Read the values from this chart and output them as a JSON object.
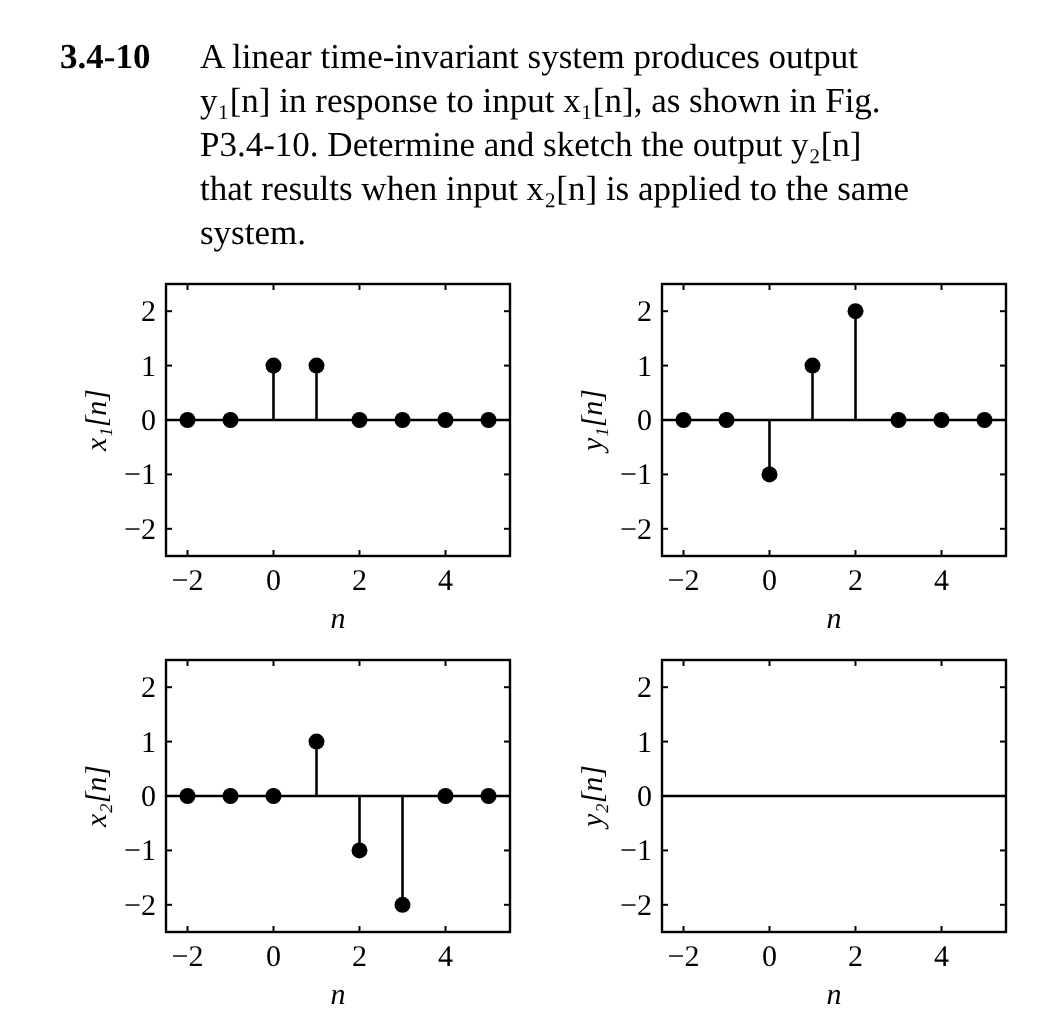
{
  "chart_data": [
    {
      "type": "other",
      "title": "3.4-10",
      "annotations": [
        "A linear time-invariant system produces output y₁[n] in response to input x₁[n], as shown in Fig. P3.4-10. Determine and sketch the output y₂[n] that results when input x₂[n] is applied to the same system."
      ]
    },
    {
      "type": "lollipop",
      "x": [
        -2,
        -1,
        0,
        1,
        2,
        3,
        4,
        5
      ],
      "values": [
        0,
        0,
        1,
        1,
        0,
        0,
        0,
        0
      ],
      "color": "#000000",
      "marker": "circle",
      "xlabel": "n",
      "ylabel": "x₁[n]",
      "xlim": [
        -2.5,
        5.5
      ],
      "ylim": [
        -2.5,
        2.5
      ],
      "xticks": [
        -2,
        0,
        2,
        4
      ],
      "yticks": [
        -2,
        -1,
        0,
        1,
        2
      ]
    },
    {
      "type": "lollipop",
      "x": [
        -2,
        -1,
        0,
        1,
        2,
        3,
        4,
        5
      ],
      "values": [
        0,
        0,
        -1,
        1,
        2,
        0,
        0,
        0
      ],
      "color": "#000000",
      "marker": "circle",
      "xlabel": "n",
      "ylabel": "y₁[n]",
      "xlim": [
        -2.5,
        5.5
      ],
      "ylim": [
        -2.5,
        2.5
      ],
      "xticks": [
        -2,
        0,
        2,
        4
      ],
      "yticks": [
        -2,
        -1,
        0,
        1,
        2
      ]
    },
    {
      "type": "lollipop",
      "x": [
        -2,
        -1,
        0,
        1,
        2,
        3,
        4,
        5
      ],
      "values": [
        0,
        0,
        0,
        1,
        -1,
        -2,
        0,
        0
      ],
      "color": "#000000",
      "marker": "circle",
      "xlabel": "n",
      "ylabel": "x₂[n]",
      "xlim": [
        -2.5,
        5.5
      ],
      "ylim": [
        -2.5,
        2.5
      ],
      "xticks": [
        -2,
        0,
        2,
        4
      ],
      "yticks": [
        -2,
        -1,
        0,
        1,
        2
      ]
    },
    {
      "type": "lollipop",
      "xlabel": "n",
      "ylabel": "y₂[n]",
      "xlim": [
        -2.5,
        5.5
      ],
      "ylim": [
        -2.5,
        2.5
      ],
      "xticks": [
        -2,
        0,
        2,
        4
      ],
      "yticks": [
        -2,
        -1,
        0,
        1,
        2
      ]
    }
  ]
}
